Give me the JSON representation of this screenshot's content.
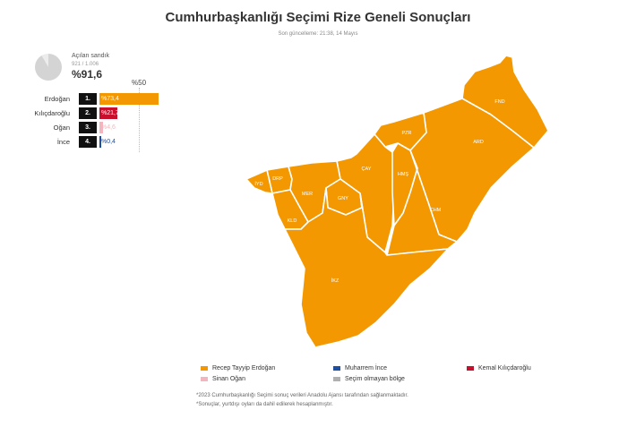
{
  "header": {
    "title": "Cumhurbaşkanlığı Seçimi Rize Geneli Sonuçları",
    "updated": "Son güncelleme: 21:38, 14 Mayıs"
  },
  "summary": {
    "opened_label": "Açılan sandık",
    "opened_count": "921 / 1.006",
    "opened_pct_text": "%91,6",
    "opened_fraction": 0.916,
    "threshold_label": "%50"
  },
  "candidates": [
    {
      "name": "Erdoğan",
      "rank": "1.",
      "pct_text": "%73,4",
      "value": 73.4,
      "color": "#f39800"
    },
    {
      "name": "Kılıçdaroğlu",
      "rank": "2.",
      "pct_text": "%21,7",
      "value": 21.7,
      "color": "#c8102e"
    },
    {
      "name": "Oğan",
      "rank": "3.",
      "pct_text": "%4,6",
      "value": 4.6,
      "color": "#f4b6be"
    },
    {
      "name": "İnce",
      "rank": "4.",
      "pct_text": "%0,4",
      "value": 0.4,
      "color": "#1f4fa3"
    }
  ],
  "map": {
    "fill_color": "#f39800",
    "border_color": "#ffffff",
    "districts": [
      "FND",
      "ARD",
      "PZR",
      "ÇAY",
      "HMŞ",
      "ÇHM",
      "DRP",
      "İYD",
      "MER",
      "GNY",
      "KLD",
      "İKZ"
    ]
  },
  "legend": [
    {
      "label": "Recep Tayyip Erdoğan",
      "color": "#f39800"
    },
    {
      "label": "Muharrem İnce",
      "color": "#1f4fa3"
    },
    {
      "label": "Kemal Kılıçdaroğlu",
      "color": "#c8102e"
    },
    {
      "label": "Sinan Oğan",
      "color": "#f4b6be"
    },
    {
      "label": "Seçim olmayan bölge",
      "color": "#b0b0b0"
    }
  ],
  "footnotes": [
    "*2023 Cumhurbaşkanlığı Seçimi sonuç verileri Anadolu Ajansı tarafından sağlanmaktadır.",
    "*Sonuçlar, yurtdışı oyları da dahil edilerek hesaplanmıştır."
  ]
}
